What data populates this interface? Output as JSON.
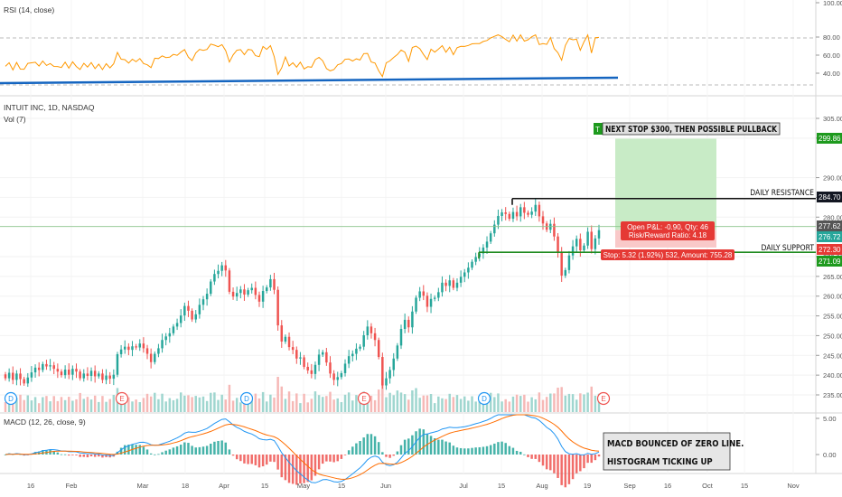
{
  "title": "INTUIT INC, 1D, NASDAQ",
  "volume_label": "Vol (7)",
  "rsi_label": "RSI (14, close)",
  "macd_label": "MACD (12, 26, close, 9)",
  "colors": {
    "up": "#26a69a",
    "down": "#ef5350",
    "rsi": "#ff9800",
    "trend": "#1565c0",
    "macd": "#2196f3",
    "signal": "#ff6d00",
    "profit": "#c8ebc6",
    "loss": "#f9c9c9"
  },
  "annotations": {
    "next_stop": "NEXT STOP $300, THEN POSSIBLE PULLBACK",
    "daily_resistance": "DAILY RESISTANCE",
    "daily_support": "DAILY SUPPORT",
    "open_pnl": "Open P&L: -0.90, Qty: 46",
    "risk_reward": "Risk/Reward Ratio: 4.18",
    "stop": "Stop: 5.32 (1.92%) 532, Amount: 755.28",
    "macd_note_1": "MACD BOUNCED OF ZERO LINE.",
    "macd_note_2": "HISTOGRAM TICKING UP",
    "target_flag": "T"
  },
  "price_badges": [
    {
      "value": "299.86",
      "color": "#1e9a1e"
    },
    {
      "value": "284.70",
      "color": "#131722"
    },
    {
      "value": "277.62",
      "color": "#555555"
    },
    {
      "value": "276.72",
      "color": "#26a69a"
    },
    {
      "value": "272.30",
      "color": "#e53935"
    },
    {
      "value": "271.09",
      "color": "#1e9a1e"
    }
  ],
  "event_markers": [
    {
      "kind": "D",
      "color": "#2196f3"
    },
    {
      "kind": "E",
      "color": "#ef5350"
    },
    {
      "kind": "D",
      "color": "#2196f3"
    },
    {
      "kind": "E",
      "color": "#ef5350"
    },
    {
      "kind": "D",
      "color": "#2196f3"
    },
    {
      "kind": "E",
      "color": "#ef5350"
    }
  ],
  "chart_data": {
    "type": "candlestick",
    "title": "INTUIT INC, 1D, NASDAQ",
    "price_axis": {
      "ticks": [
        "305.00",
        "300.00",
        "290.00",
        "285.00",
        "280.00",
        "270.00",
        "265.00",
        "260.00",
        "255.00",
        "250.00",
        "245.00",
        "240.00",
        "235.00"
      ]
    },
    "rsi_axis": {
      "ticks": [
        "100.00",
        "80.00",
        "60.00",
        "40.00"
      ]
    },
    "macd_axis": {
      "ticks": [
        "5.00",
        "0.00",
        "-5.00"
      ]
    },
    "x_axis": {
      "ticks": [
        "16",
        "Feb",
        "Mar",
        "18",
        "Apr",
        "15",
        "May",
        "15",
        "Jun",
        "Jul",
        "15",
        "Aug",
        "19",
        "Sep",
        "16",
        "Oct",
        "15",
        "Nov"
      ]
    },
    "levels": {
      "target": 299.86,
      "resistance": 284.7,
      "current": 277.62,
      "entry": 276.72,
      "stop": 272.3,
      "support": 271.09
    },
    "candles": [
      [
        240.2,
        239.2
      ],
      [
        239.2,
        240.6
      ],
      [
        240.6,
        238.8
      ],
      [
        238.8,
        240.4
      ],
      [
        240.4,
        239.0
      ],
      [
        239.0,
        237.9
      ],
      [
        237.9,
        239.4
      ],
      [
        239.4,
        240.7
      ],
      [
        240.7,
        241.9
      ],
      [
        241.9,
        241.3
      ],
      [
        241.3,
        242.8
      ],
      [
        242.8,
        242.2
      ],
      [
        242.2,
        242.5
      ],
      [
        242.5,
        241.6
      ],
      [
        241.6,
        240.9
      ],
      [
        240.9,
        240.0
      ],
      [
        240.0,
        241.4
      ],
      [
        241.4,
        240.1
      ],
      [
        240.1,
        241.6
      ],
      [
        241.6,
        240.9
      ],
      [
        240.9,
        239.2
      ],
      [
        239.2,
        240.4
      ],
      [
        240.4,
        239.8
      ],
      [
        239.8,
        241.1
      ],
      [
        241.1,
        239.7
      ],
      [
        239.7,
        240.4
      ],
      [
        240.4,
        238.8
      ],
      [
        238.8,
        239.9
      ],
      [
        239.9,
        239.1
      ],
      [
        239.1,
        240.1
      ],
      [
        240.1,
        245.3
      ],
      [
        245.3,
        246.5
      ],
      [
        246.5,
        247.2
      ],
      [
        247.2,
        246.4
      ],
      [
        246.4,
        247.3
      ],
      [
        247.3,
        247.0
      ],
      [
        247.0,
        248.0
      ],
      [
        248.0,
        246.8
      ],
      [
        246.8,
        245.4
      ],
      [
        245.4,
        243.3
      ],
      [
        243.3,
        245.4
      ],
      [
        245.4,
        246.8
      ],
      [
        246.8,
        248.9
      ],
      [
        248.9,
        249.8
      ],
      [
        249.8,
        250.6
      ],
      [
        250.6,
        252.3
      ],
      [
        252.3,
        253.2
      ],
      [
        253.2,
        255.1
      ],
      [
        255.1,
        257.5
      ],
      [
        257.5,
        256.3
      ],
      [
        256.3,
        254.1
      ],
      [
        254.1,
        255.4
      ],
      [
        255.4,
        257.8
      ],
      [
        257.8,
        259.2
      ],
      [
        259.2,
        260.6
      ],
      [
        260.6,
        263.7
      ],
      [
        263.7,
        265.6
      ],
      [
        265.6,
        266.4
      ],
      [
        266.4,
        267.8
      ],
      [
        267.8,
        266.5
      ],
      [
        266.5,
        261.1
      ],
      [
        261.1,
        259.9
      ],
      [
        259.9,
        260.8
      ],
      [
        260.8,
        261.7
      ],
      [
        261.7,
        260.4
      ],
      [
        260.4,
        261.5
      ],
      [
        261.5,
        262.1
      ],
      [
        262.1,
        260.3
      ],
      [
        260.3,
        258.6
      ],
      [
        258.6,
        261.3
      ],
      [
        261.3,
        262.2
      ],
      [
        262.2,
        264.3
      ],
      [
        264.3,
        261.6
      ],
      [
        261.6,
        252.6
      ],
      [
        252.6,
        248.5
      ],
      [
        248.5,
        249.7
      ],
      [
        249.7,
        247.1
      ],
      [
        247.1,
        246.4
      ],
      [
        246.4,
        244.2
      ],
      [
        244.2,
        244.5
      ],
      [
        244.5,
        242.1
      ],
      [
        242.1,
        241.2
      ],
      [
        241.2,
        240.3
      ],
      [
        240.3,
        242.6
      ],
      [
        242.6,
        245.2
      ],
      [
        245.2,
        245.8
      ],
      [
        245.8,
        243.2
      ],
      [
        243.2,
        240.4
      ],
      [
        240.4,
        238.8
      ],
      [
        238.8,
        239.5
      ],
      [
        239.5,
        240.5
      ],
      [
        240.5,
        242.9
      ],
      [
        242.9,
        244.8
      ],
      [
        244.8,
        245.4
      ],
      [
        245.4,
        246.7
      ],
      [
        246.7,
        247.2
      ],
      [
        247.2,
        250.1
      ],
      [
        250.1,
        252.3
      ],
      [
        252.3,
        250.6
      ],
      [
        250.6,
        248.9
      ],
      [
        248.9,
        244.6
      ],
      [
        244.6,
        237.4
      ],
      [
        237.4,
        239.2
      ],
      [
        239.2,
        241.3
      ],
      [
        241.3,
        244.2
      ],
      [
        244.2,
        247.5
      ],
      [
        247.5,
        251.7
      ],
      [
        251.7,
        254.0
      ],
      [
        254.0,
        252.1
      ],
      [
        252.1,
        256.1
      ],
      [
        256.1,
        259.6
      ],
      [
        259.6,
        261.2
      ],
      [
        261.2,
        260.1
      ],
      [
        260.1,
        257.3
      ],
      [
        257.3,
        259.3
      ],
      [
        259.3,
        259.6
      ],
      [
        259.6,
        261.0
      ],
      [
        261.0,
        263.4
      ],
      [
        263.4,
        262.6
      ],
      [
        262.6,
        264.0
      ],
      [
        264.0,
        262.1
      ],
      [
        262.1,
        263.4
      ],
      [
        263.4,
        264.9
      ],
      [
        264.9,
        266.0
      ],
      [
        266.0,
        267.2
      ],
      [
        267.2,
        268.7
      ],
      [
        268.7,
        269.9
      ],
      [
        269.9,
        270.8
      ],
      [
        270.8,
        272.3
      ],
      [
        272.3,
        273.8
      ],
      [
        273.8,
        275.9
      ],
      [
        275.9,
        278.1
      ],
      [
        278.1,
        280.3
      ],
      [
        280.3,
        281.2
      ],
      [
        281.2,
        280.8
      ],
      [
        280.8,
        279.6
      ],
      [
        279.6,
        281.3
      ],
      [
        281.3,
        280.2
      ],
      [
        280.2,
        282.5
      ],
      [
        282.5,
        281.1
      ],
      [
        281.1,
        280.6
      ],
      [
        280.6,
        281.4
      ],
      [
        281.4,
        283.1
      ],
      [
        283.1,
        280.2
      ],
      [
        280.2,
        278.4
      ],
      [
        278.4,
        276.8
      ],
      [
        276.8,
        278.3
      ],
      [
        278.3,
        275.1
      ],
      [
        275.1,
        271.1
      ],
      [
        271.1,
        265.2
      ],
      [
        265.2,
        266.6
      ],
      [
        266.6,
        270.3
      ],
      [
        270.3,
        272.6
      ],
      [
        272.6,
        274.5
      ],
      [
        274.5,
        271.6
      ],
      [
        271.6,
        272.8
      ],
      [
        272.8,
        276.3
      ],
      [
        276.3,
        271.9
      ],
      [
        271.9,
        274.6
      ],
      [
        274.6,
        276.7
      ]
    ]
  }
}
